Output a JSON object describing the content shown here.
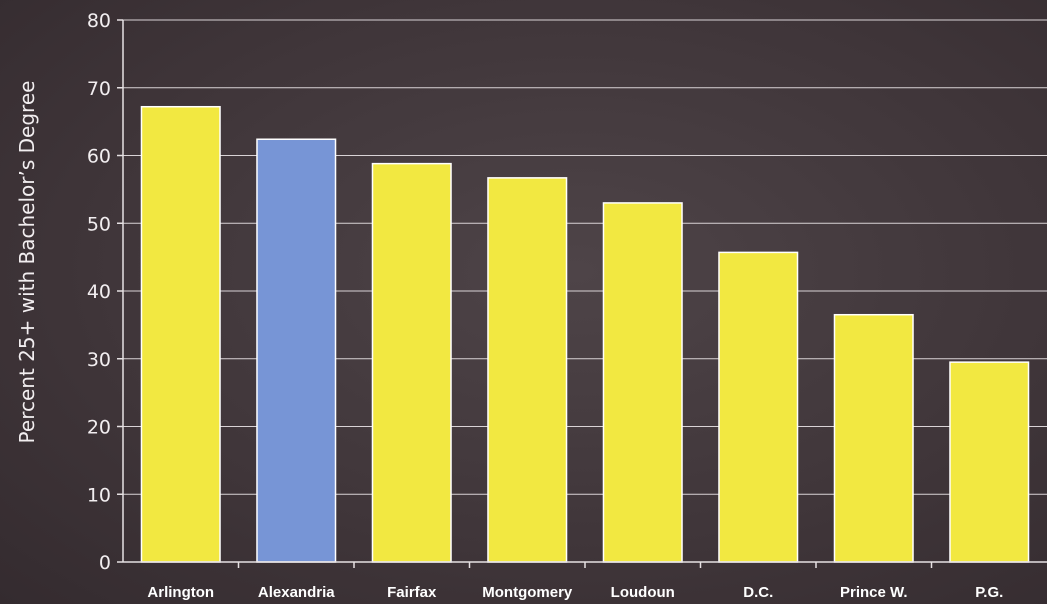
{
  "chart_data": {
    "type": "bar",
    "title": "",
    "xlabel": "",
    "ylabel": "Percent 25+ with Bachelor’s Degree",
    "ylim": [
      0,
      80
    ],
    "yticks": [
      0,
      10,
      20,
      30,
      40,
      50,
      60,
      70,
      80
    ],
    "grid": true,
    "categories": [
      "Arlington",
      "Alexandria",
      "Fairfax",
      "Montgomery",
      "Loudoun",
      "D.C.",
      "Prince W.",
      "P.G."
    ],
    "values": [
      67.2,
      62.4,
      58.8,
      56.7,
      53.0,
      45.7,
      36.5,
      29.5
    ],
    "colors": [
      "#f2e841",
      "#7795d6",
      "#f2e841",
      "#f2e841",
      "#f2e841",
      "#f2e841",
      "#f2e841",
      "#f2e841"
    ]
  }
}
